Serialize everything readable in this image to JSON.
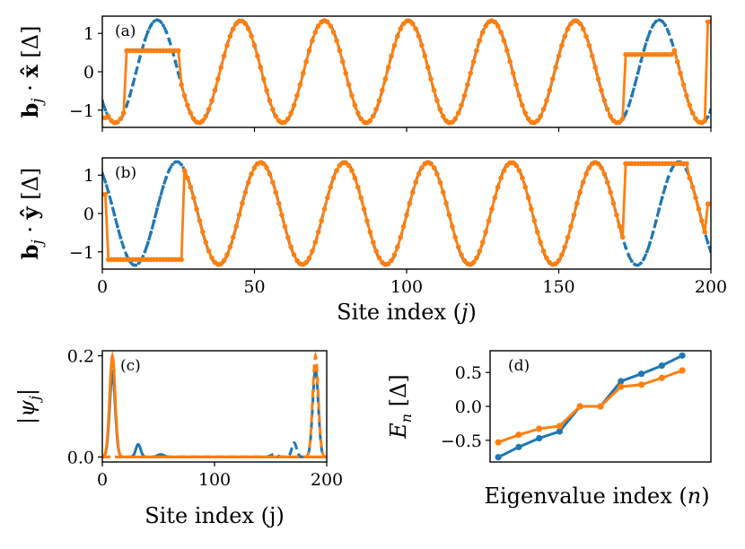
{
  "colors": {
    "blue": "#1f77b4",
    "orange": "#ff7f0e"
  },
  "chart_data": [
    {
      "panel": "a",
      "type": "line",
      "panel_label": "(a)",
      "ylabel": "b_j · x̂ [Δ]",
      "xlim": [
        0,
        200
      ],
      "ylim": [
        -1.45,
        1.45
      ],
      "yticks": [
        "-1",
        "0",
        "1"
      ],
      "series": [
        {
          "color": "blue",
          "style": "dashed",
          "model": "cosine",
          "amplitude": 1.35,
          "period": 27.5,
          "phase_peak": 18
        },
        {
          "color": "orange",
          "style": "solid-markers",
          "model": "cosine-with-domain-walls",
          "amplitude": 1.33,
          "period": 27.5,
          "phase_peak": 45.5,
          "defect_regions": [
            {
              "from": 8,
              "to": 25,
              "value": 0.55
            },
            {
              "from": 172,
              "to": 187,
              "value": 0.45
            }
          ],
          "edge_values": {
            "start": -1.2,
            "end": 1.3
          }
        }
      ]
    },
    {
      "panel": "b",
      "type": "line",
      "panel_label": "(b)",
      "ylabel": "b_j · ŷ [Δ]",
      "xlabel": "Site index (j)",
      "xlim": [
        0,
        200
      ],
      "ylim": [
        -1.45,
        1.45
      ],
      "xticks": [
        "0",
        "50",
        "100",
        "150",
        "200"
      ],
      "yticks": [
        "-1",
        "0",
        "1"
      ],
      "series": [
        {
          "color": "blue",
          "style": "dashed",
          "model": "cosine",
          "amplitude": 1.35,
          "period": 27.5,
          "phase_peak": 24.5
        },
        {
          "color": "orange",
          "style": "solid-markers",
          "model": "cosine-with-domain-walls",
          "amplitude": 1.33,
          "period": 27.5,
          "phase_peak": 52,
          "defect_regions": [
            {
              "from": 2,
              "to": 26,
              "value": -1.2
            },
            {
              "from": 172,
              "to": 192,
              "value": 1.3
            }
          ],
          "edge_values": {
            "start": 0.5,
            "end": 0.25
          }
        }
      ]
    },
    {
      "panel": "c",
      "type": "line",
      "panel_label": "(c)",
      "ylabel": "|ψ_j|",
      "xlabel": "Site index (j)",
      "xlim": [
        0,
        200
      ],
      "ylim": [
        -0.01,
        0.21
      ],
      "xticks": [
        "0",
        "100",
        "200"
      ],
      "yticks": [
        "0.0",
        "0.2"
      ],
      "series": [
        {
          "color": "blue",
          "style": "solid",
          "peaks": [
            {
              "x": 9,
              "height": 0.165,
              "width": 3.5
            },
            {
              "x": 32,
              "height": 0.025,
              "width": 3
            },
            {
              "x": 52,
              "height": 0.005,
              "width": 4
            }
          ]
        },
        {
          "color": "orange",
          "style": "solid",
          "peaks": [
            {
              "x": 9,
              "height": 0.2,
              "width": 3.5
            }
          ]
        },
        {
          "color": "blue",
          "style": "dashed",
          "peaks": [
            {
              "x": 190,
              "height": 0.175,
              "width": 3.5
            },
            {
              "x": 171,
              "height": 0.028,
              "width": 3
            },
            {
              "x": 153,
              "height": 0.005,
              "width": 4
            }
          ]
        },
        {
          "color": "orange",
          "style": "dashed",
          "peaks": [
            {
              "x": 190,
              "height": 0.2,
              "width": 3.5
            }
          ]
        }
      ]
    },
    {
      "panel": "d",
      "type": "line",
      "panel_label": "(d)",
      "ylabel": "E_n [Δ]",
      "xlabel": "Eigenvalue index (n)",
      "xlim": [
        -0.4,
        10.4
      ],
      "ylim": [
        -0.82,
        0.82
      ],
      "yticks": [
        "-0.5",
        "0.0",
        "0.5"
      ],
      "x": [
        0,
        1,
        2,
        3,
        4,
        5,
        6,
        7,
        8,
        9
      ],
      "series": [
        {
          "color": "blue",
          "values": [
            -0.75,
            -0.6,
            -0.47,
            -0.37,
            0.0,
            0.0,
            0.37,
            0.48,
            0.6,
            0.75
          ]
        },
        {
          "color": "orange",
          "values": [
            -0.53,
            -0.42,
            -0.33,
            -0.29,
            0.0,
            0.0,
            0.29,
            0.32,
            0.42,
            0.53
          ]
        }
      ]
    }
  ]
}
